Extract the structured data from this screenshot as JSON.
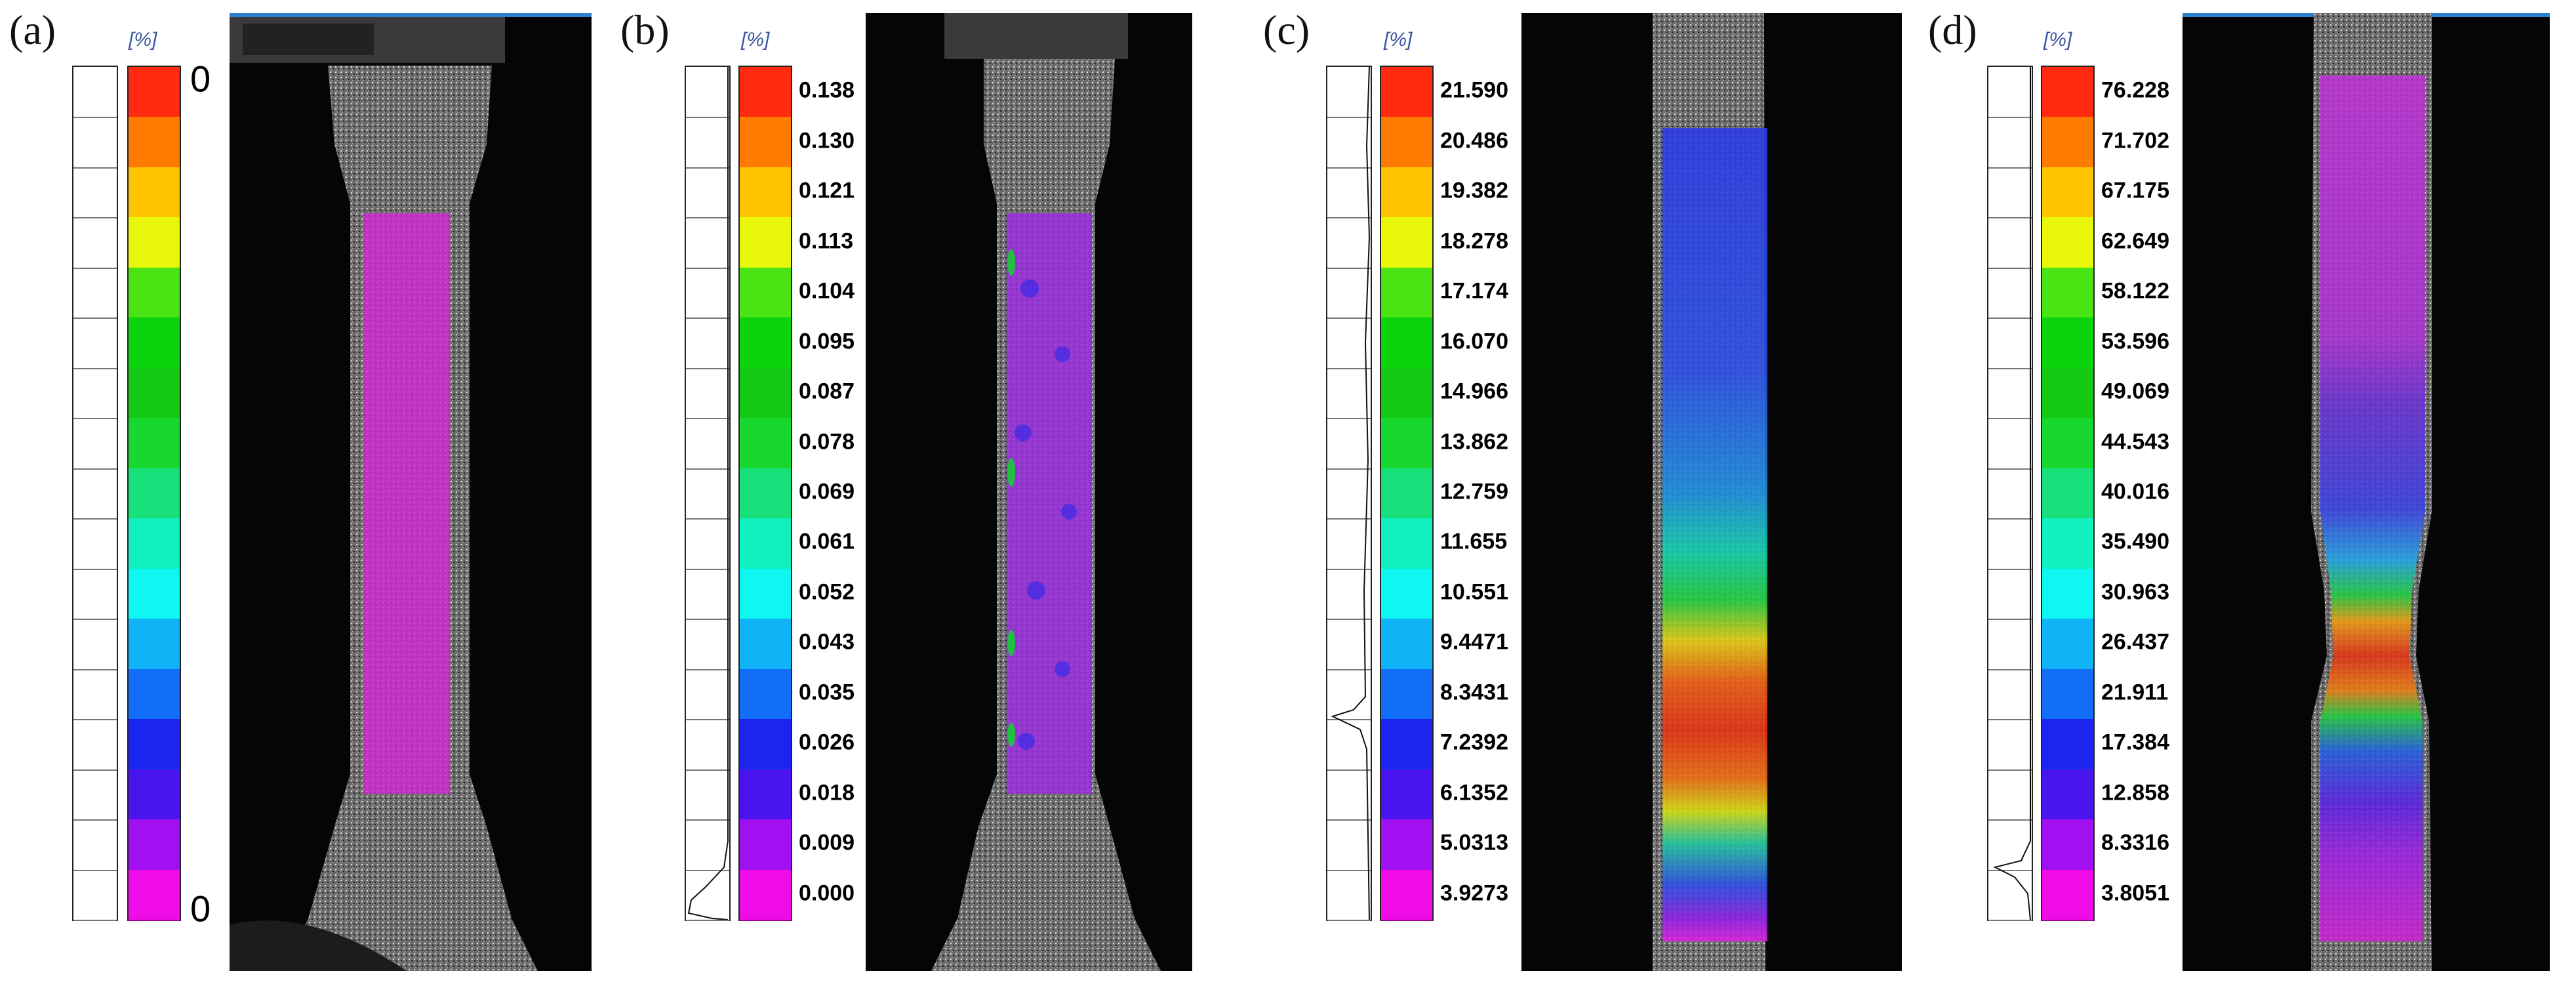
{
  "colors": {
    "scale": [
      "#ff2a10",
      "#ff7a00",
      "#ffc400",
      "#e8f70a",
      "#4ae414",
      "#0cd40c",
      "#14c914",
      "#18d830",
      "#18e07a",
      "#13f0c0",
      "#0ef7f0",
      "#10b4f6",
      "#126ef8",
      "#1a26f0",
      "#4a14ee",
      "#a010f0",
      "#f00ce8"
    ],
    "photo_bg": "#050505",
    "speckle": "#9a9a9a",
    "accent_line": "#2f7fd0"
  },
  "panels": [
    {
      "label": "(a)",
      "unit": "[%]",
      "ticks": [
        "0",
        "0"
      ],
      "big_ticks": true
    },
    {
      "label": "(b)",
      "unit": "[%]",
      "ticks": [
        "0.138",
        "0.130",
        "0.121",
        "0.113",
        "0.104",
        "0.095",
        "0.087",
        "0.078",
        "0.069",
        "0.061",
        "0.052",
        "0.043",
        "0.035",
        "0.026",
        "0.018",
        "0.009",
        "0.000"
      ],
      "big_ticks": false
    },
    {
      "label": "(c)",
      "unit": "[%]",
      "ticks": [
        "21.590",
        "20.486",
        "19.382",
        "18.278",
        "17.174",
        "16.070",
        "14.966",
        "13.862",
        "12.759",
        "11.655",
        "10.551",
        "9.4471",
        "8.3431",
        "7.2392",
        "6.1352",
        "5.0313",
        "3.9273"
      ],
      "big_ticks": false
    },
    {
      "label": "(d)",
      "unit": "[%]",
      "ticks": [
        "76.228",
        "71.702",
        "67.175",
        "62.649",
        "58.122",
        "53.596",
        "49.069",
        "44.543",
        "40.016",
        "35.490",
        "30.963",
        "26.437",
        "21.911",
        "17.384",
        "12.858",
        "8.3316",
        "3.8051"
      ],
      "big_ticks": false
    }
  ]
}
